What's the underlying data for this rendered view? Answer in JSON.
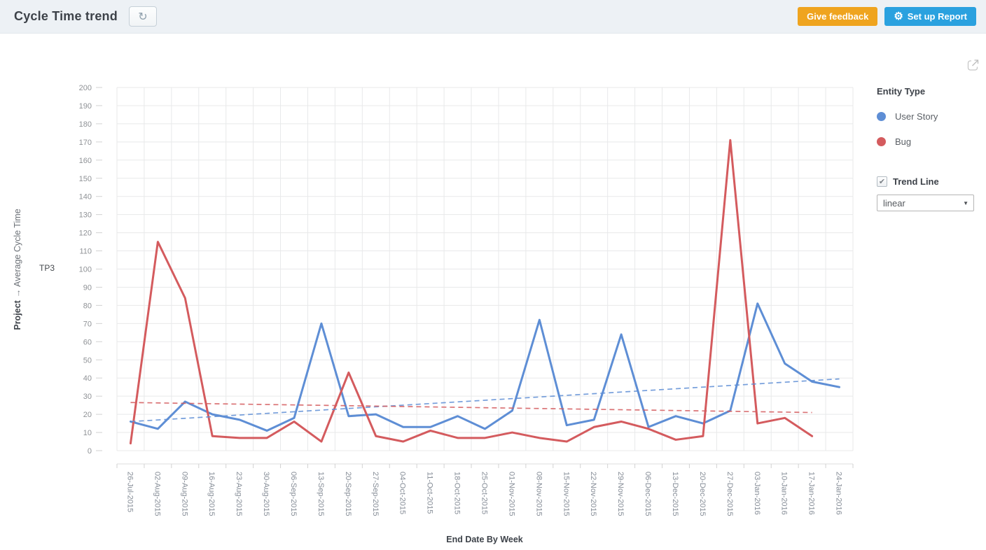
{
  "header": {
    "title": "Cycle Time trend",
    "feedback_label": "Give feedback",
    "setup_label": "Set up Report"
  },
  "icons": {
    "refresh": "↻",
    "gear": "⚙",
    "caret": "▼",
    "check": "✔"
  },
  "legend": {
    "title": "Entity Type",
    "items": [
      {
        "label": "User Story"
      },
      {
        "label": "Bug"
      }
    ]
  },
  "trend_control": {
    "label": "Trend Line",
    "checked": true,
    "selected": "linear"
  },
  "axes": {
    "y_title_bold": "Project",
    "y_title_rest": "→ Average Cycle Time",
    "facet_label": "TP3",
    "x_title": "End Date By Week"
  },
  "chart_data": {
    "type": "line",
    "title": "Cycle Time trend",
    "xlabel": "End Date By Week",
    "ylabel": "Project → Average Cycle Time",
    "facet": "TP3",
    "ylim": [
      0,
      200
    ],
    "ytick_step": 10,
    "grid": true,
    "legend_position": "right",
    "categories": [
      "26-Jul-2015",
      "02-Aug-2015",
      "09-Aug-2015",
      "16-Aug-2015",
      "23-Aug-2015",
      "30-Aug-2015",
      "06-Sep-2015",
      "13-Sep-2015",
      "20-Sep-2015",
      "27-Sep-2015",
      "04-Oct-2015",
      "11-Oct-2015",
      "18-Oct-2015",
      "25-Oct-2015",
      "01-Nov-2015",
      "08-Nov-2015",
      "15-Nov-2015",
      "22-Nov-2015",
      "29-Nov-2015",
      "06-Dec-2015",
      "13-Dec-2015",
      "20-Dec-2015",
      "27-Dec-2015",
      "03-Jan-2016",
      "10-Jan-2016",
      "17-Jan-2016",
      "24-Jan-2016"
    ],
    "series": [
      {
        "name": "User Story",
        "color": "#5E8ED5",
        "values": [
          16,
          12,
          27,
          20,
          17,
          11,
          18,
          70,
          19,
          20,
          13,
          13,
          19,
          12,
          22,
          72,
          14,
          17,
          64,
          13,
          19,
          15,
          22,
          81,
          48,
          38,
          35
        ]
      },
      {
        "name": "Bug",
        "color": "#D45B5E",
        "values": [
          4,
          115,
          84,
          8,
          7,
          7,
          16,
          5,
          43,
          8,
          5,
          11,
          7,
          7,
          10,
          7,
          5,
          13,
          16,
          12,
          6,
          8,
          171,
          15,
          18,
          8,
          null
        ]
      }
    ],
    "trend_lines": {
      "type": "linear",
      "series": [
        {
          "name": "User Story",
          "start": 16,
          "end": 39.5
        },
        {
          "name": "Bug",
          "start": 26.5,
          "end": 21
        }
      ]
    }
  }
}
